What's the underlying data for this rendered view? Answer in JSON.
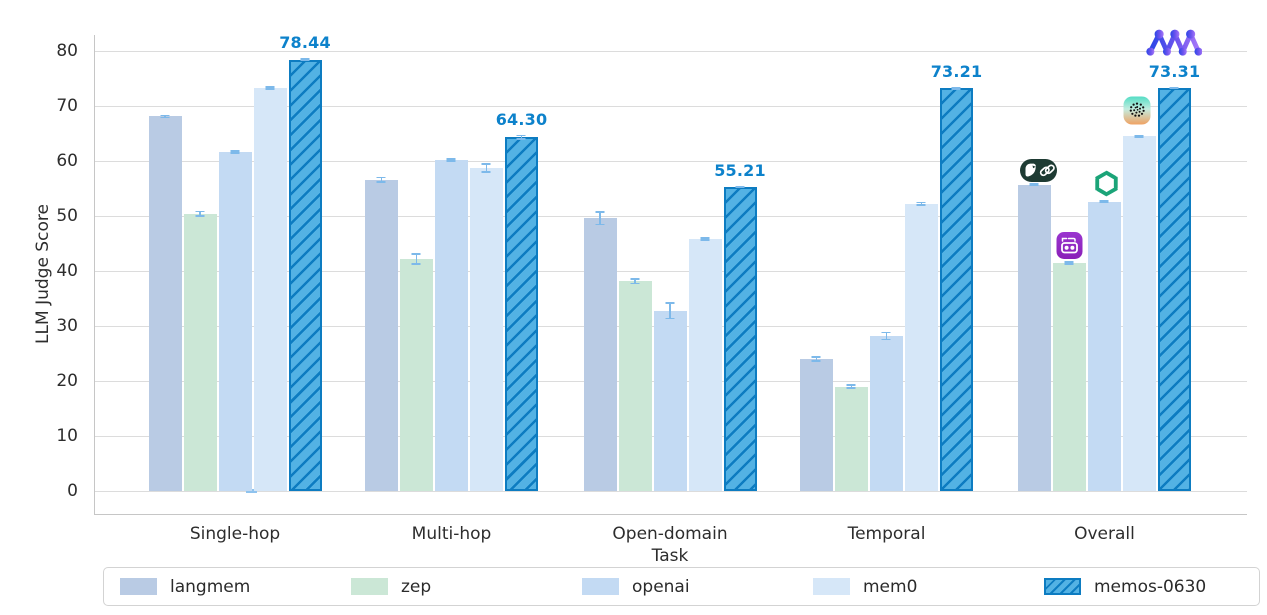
{
  "page": {
    "background": "#ffffff"
  },
  "chart_data": {
    "type": "bar",
    "title": "",
    "xlabel": "Task",
    "ylabel": "LLM Judge Score",
    "ylim": [
      0,
      80
    ],
    "yticks": [
      0,
      10,
      20,
      30,
      40,
      50,
      60,
      70,
      80
    ],
    "grid": true,
    "grid_color": "#dcdcdc",
    "spine_color": "#c6c6c6",
    "error_bar_color": "#7db9ea",
    "legend_position": "bottom",
    "categories": [
      "Single-hop",
      "Multi-hop",
      "Open-domain",
      "Temporal",
      "Overall"
    ],
    "series": [
      {
        "name": "langmem",
        "color": "#b9cbe4",
        "values": [
          68.1,
          56.6,
          49.6,
          24.0,
          55.7
        ],
        "errors": [
          0.35,
          0.55,
          1.3,
          0.5,
          0.3
        ]
      },
      {
        "name": "zep",
        "color": "#cbe7d6",
        "values": [
          50.4,
          42.2,
          38.1,
          19.0,
          41.4
        ],
        "errors": [
          0.6,
          1.1,
          0.55,
          0.45,
          0.35
        ]
      },
      {
        "name": "openai",
        "color": "#c3daf3",
        "values": [
          61.7,
          60.2,
          32.8,
          28.2,
          52.6
        ],
        "errors": [
          0.35,
          0.3,
          1.6,
          0.8,
          0.3
        ]
      },
      {
        "name": "mem0",
        "color": "#d6e7f8",
        "values": [
          73.3,
          58.7,
          45.8,
          52.2,
          64.5
        ],
        "errors": [
          0.35,
          0.85,
          0.3,
          0.4,
          0.25
        ]
      },
      {
        "name": "memos-0630",
        "color": "#53b2e4",
        "hatch": true,
        "edge_color": "#0d7cc1",
        "values": [
          78.44,
          64.3,
          55.21,
          73.21,
          73.31
        ],
        "errors": [
          0.2,
          0.5,
          0.2,
          0.3,
          0.2
        ],
        "bar_labels": [
          "78.44",
          "64.30",
          "55.21",
          "73.21",
          "73.31"
        ],
        "label_color": "#0d82cb"
      }
    ]
  },
  "icons": {
    "langmem": "langchain-parrot-chain-icon",
    "zep": "zep-robot-icon",
    "openai": "openai-logo-icon",
    "mem0": "mem0-dotted-sphere-icon",
    "memos_0630": "memos-network-icon"
  }
}
